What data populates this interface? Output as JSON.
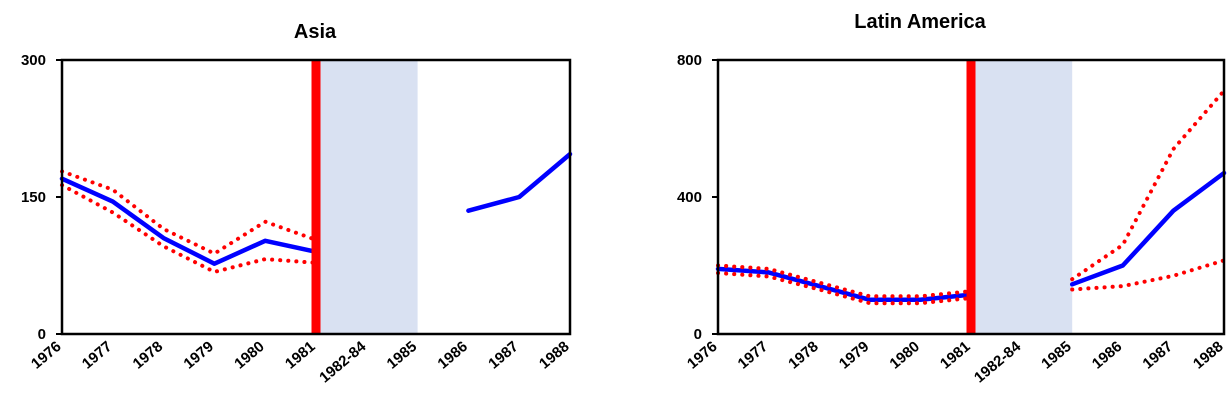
{
  "chart_data": [
    {
      "type": "line",
      "title": "Asia",
      "categories": [
        "1976",
        "1977",
        "1978",
        "1979",
        "1980",
        "1981",
        "1982-84",
        "1985",
        "1986",
        "1987",
        "1988"
      ],
      "yticks": [
        "0",
        "150",
        "300"
      ],
      "ylim": [
        0,
        300
      ],
      "marker": {
        "category": "1981",
        "color": "#ff0000"
      },
      "shaded_range": {
        "from": "1981",
        "to": "1985",
        "color": "#d9e1f2"
      },
      "series": [
        {
          "style": "solid",
          "color": "#0000ff",
          "segments": [
            [
              [
                0,
                170
              ],
              [
                1,
                145
              ],
              [
                2,
                105
              ],
              [
                3,
                77
              ],
              [
                4,
                102
              ],
              [
                5,
                90
              ]
            ],
            [
              [
                8,
                135
              ],
              [
                9,
                150
              ],
              [
                10,
                197
              ]
            ]
          ]
        },
        {
          "style": "dotted",
          "color": "#ff0000",
          "segments": [
            [
              [
                0,
                178
              ],
              [
                1,
                158
              ],
              [
                2,
                115
              ],
              [
                3,
                88
              ],
              [
                4,
                123
              ],
              [
                5,
                103
              ]
            ]
          ]
        },
        {
          "style": "dotted",
          "color": "#ff0000",
          "segments": [
            [
              [
                0,
                163
              ],
              [
                1,
                133
              ],
              [
                2,
                96
              ],
              [
                3,
                68
              ],
              [
                4,
                82
              ],
              [
                5,
                78
              ]
            ]
          ]
        }
      ]
    },
    {
      "type": "line",
      "title": "Latin America",
      "categories": [
        "1976",
        "1977",
        "1978",
        "1979",
        "1980",
        "1981",
        "1982-84",
        "1985",
        "1986",
        "1987",
        "1988"
      ],
      "yticks": [
        "0",
        "400",
        "800"
      ],
      "ylim": [
        0,
        800
      ],
      "marker": {
        "category": "1981",
        "color": "#ff0000"
      },
      "shaded_range": {
        "from": "1981",
        "to": "1985",
        "color": "#d9e1f2"
      },
      "series": [
        {
          "style": "solid",
          "color": "#0000ff",
          "segments": [
            [
              [
                0,
                190
              ],
              [
                1,
                180
              ],
              [
                2,
                140
              ],
              [
                3,
                100
              ],
              [
                4,
                100
              ],
              [
                5,
                115
              ]
            ],
            [
              [
                7,
                145
              ],
              [
                8,
                200
              ],
              [
                9,
                360
              ],
              [
                10,
                470
              ]
            ]
          ]
        },
        {
          "style": "dotted",
          "color": "#ff0000",
          "segments": [
            [
              [
                0,
                200
              ],
              [
                1,
                190
              ],
              [
                2,
                150
              ],
              [
                3,
                110
              ],
              [
                4,
                110
              ],
              [
                5,
                125
              ]
            ],
            [
              [
                7,
                160
              ],
              [
                8,
                260
              ],
              [
                9,
                540
              ],
              [
                10,
                710
              ]
            ]
          ]
        },
        {
          "style": "dotted",
          "color": "#ff0000",
          "segments": [
            [
              [
                0,
                178
              ],
              [
                1,
                168
              ],
              [
                2,
                130
              ],
              [
                3,
                90
              ],
              [
                4,
                90
              ],
              [
                5,
                105
              ]
            ],
            [
              [
                7,
                130
              ],
              [
                8,
                140
              ],
              [
                9,
                170
              ],
              [
                10,
                215
              ]
            ]
          ]
        }
      ]
    }
  ]
}
